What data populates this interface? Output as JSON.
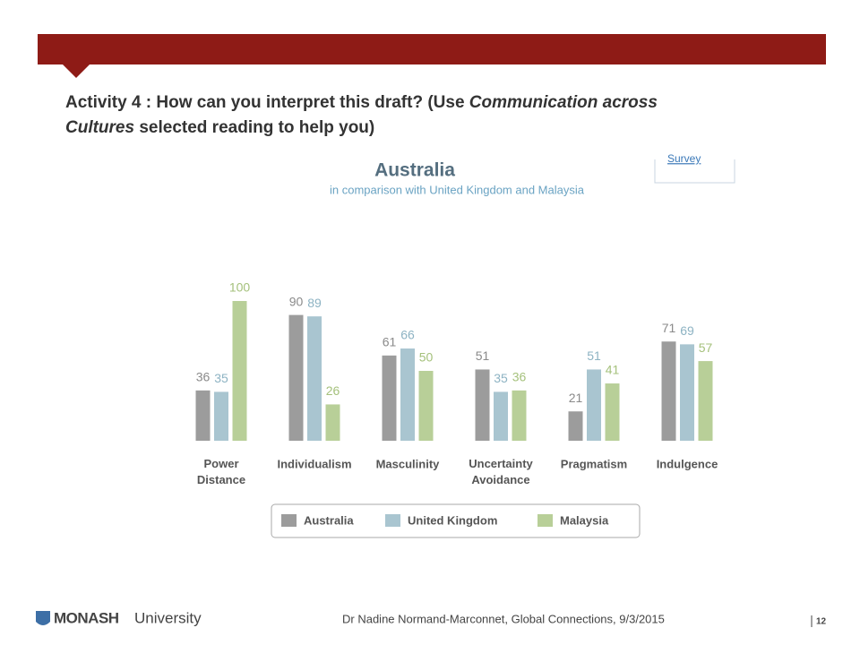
{
  "slide": {
    "title_lines": [
      [
        {
          "text": "Activity 4 : How can you interpret this draft? (Use ",
          "italic": false
        },
        {
          "text": "Communication across",
          "italic": true
        }
      ],
      [
        {
          "text": "Cultures",
          "italic": true
        },
        {
          "text": " selected reading to help you)",
          "italic": false
        }
      ]
    ],
    "side_link": "Survey",
    "footer": "Dr Nadine Normand-Marconnet, Global Connections, 9/3/2015",
    "page": "12",
    "logo": {
      "name": "MONASH",
      "suffix": "University"
    }
  },
  "chart_data": {
    "type": "bar",
    "title": "Australia",
    "subtitle": "in comparison with United Kingdom and Malaysia",
    "categories": [
      "Power Distance",
      "Individualism",
      "Masculinity",
      "Uncertainty Avoidance",
      "Pragmatism",
      "Indulgence"
    ],
    "series": [
      {
        "name": "Australia",
        "color": "#9c9c9c",
        "label_color": "#8a8a8a",
        "values": [
          36,
          90,
          61,
          51,
          21,
          71
        ]
      },
      {
        "name": "United Kingdom",
        "color": "#a9c5d0",
        "label_color": "#8db3c3",
        "values": [
          35,
          89,
          66,
          35,
          51,
          69
        ]
      },
      {
        "name": "Malaysia",
        "color": "#b8cf98",
        "label_color": "#a5c17c",
        "values": [
          100,
          26,
          50,
          36,
          41,
          57
        ]
      }
    ],
    "ylim": [
      0,
      100
    ]
  }
}
